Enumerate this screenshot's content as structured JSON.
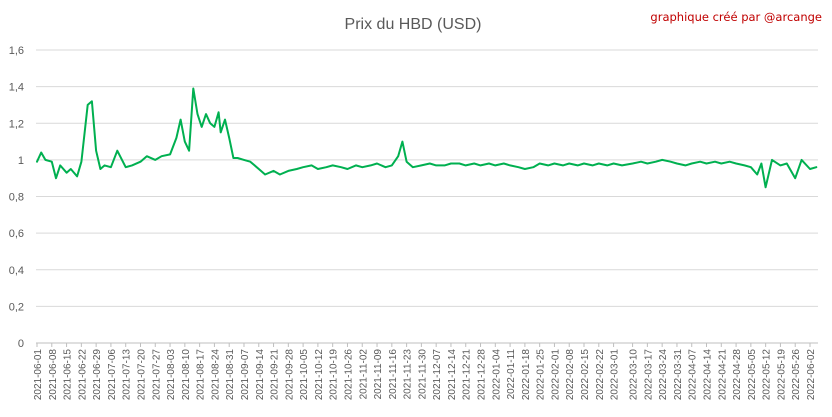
{
  "chart_data": {
    "type": "line",
    "title": "Prix du HBD (USD)",
    "credit": "graphique créé par @arcange",
    "xlabel": "",
    "ylabel": "",
    "ylim": [
      0,
      1.6
    ],
    "yticks": [
      {
        "value": 0,
        "label": "0"
      },
      {
        "value": 0.2,
        "label": "0,2"
      },
      {
        "value": 0.4,
        "label": "0,4"
      },
      {
        "value": 0.6,
        "label": "0,6"
      },
      {
        "value": 0.8,
        "label": "0,8"
      },
      {
        "value": 1,
        "label": "1"
      },
      {
        "value": 1.2,
        "label": "1,2"
      },
      {
        "value": 1.4,
        "label": "1,4"
      },
      {
        "value": 1.6,
        "label": "1,6"
      }
    ],
    "xticks": [
      "2021-06-01",
      "2021-06-08",
      "2021-06-15",
      "2021-06-22",
      "2021-06-29",
      "2021-07-06",
      "2021-07-13",
      "2021-07-20",
      "2021-07-27",
      "2021-08-03",
      "2021-08-10",
      "2021-08-17",
      "2021-08-24",
      "2021-08-31",
      "2021-09-07",
      "2021-09-14",
      "2021-09-21",
      "2021-09-28",
      "2021-10-05",
      "2021-10-12",
      "2021-10-19",
      "2021-10-26",
      "2021-11-02",
      "2021-11-09",
      "2021-11-16",
      "2021-11-23",
      "2021-11-30",
      "2021-12-07",
      "2021-12-14",
      "2021-12-21",
      "2021-12-28",
      "2022-01-04",
      "2022-01-11",
      "2022-01-18",
      "2022-01-25",
      "2022-02-01",
      "2022-02-08",
      "2022-02-15",
      "2022-02-22",
      "2022-03-01",
      "2022-03-10",
      "2022-03-17",
      "2022-03-24",
      "2022-03-31",
      "2022-04-07",
      "2022-04-14",
      "2022-04-21",
      "2022-04-28",
      "2022-05-05",
      "2022-05-12",
      "2022-05-19",
      "2022-05-26",
      "2022-06-02"
    ],
    "grid": true,
    "legend": "none",
    "series_color": "#00b050",
    "series": [
      {
        "x": [
          "2021-06-01",
          "2021-06-03",
          "2021-06-05",
          "2021-06-08",
          "2021-06-10",
          "2021-06-12",
          "2021-06-15",
          "2021-06-17",
          "2021-06-20",
          "2021-06-22",
          "2021-06-25",
          "2021-06-27",
          "2021-06-29",
          "2021-07-01",
          "2021-07-03",
          "2021-07-06",
          "2021-07-09",
          "2021-07-13",
          "2021-07-16",
          "2021-07-20",
          "2021-07-23",
          "2021-07-27",
          "2021-07-30",
          "2021-08-03",
          "2021-08-06",
          "2021-08-08",
          "2021-08-10",
          "2021-08-12",
          "2021-08-14",
          "2021-08-16",
          "2021-08-18",
          "2021-08-20",
          "2021-08-22",
          "2021-08-24",
          "2021-08-26",
          "2021-08-27",
          "2021-08-29",
          "2021-08-31",
          "2021-09-02",
          "2021-09-04",
          "2021-09-07",
          "2021-09-10",
          "2021-09-14",
          "2021-09-17",
          "2021-09-21",
          "2021-09-24",
          "2021-09-28",
          "2021-10-02",
          "2021-10-05",
          "2021-10-09",
          "2021-10-12",
          "2021-10-16",
          "2021-10-19",
          "2021-10-23",
          "2021-10-26",
          "2021-10-30",
          "2021-11-02",
          "2021-11-06",
          "2021-11-09",
          "2021-11-13",
          "2021-11-16",
          "2021-11-19",
          "2021-11-21",
          "2021-11-23",
          "2021-11-26",
          "2021-11-30",
          "2021-12-04",
          "2021-12-07",
          "2021-12-11",
          "2021-12-14",
          "2021-12-18",
          "2021-12-21",
          "2021-12-25",
          "2021-12-28",
          "2022-01-01",
          "2022-01-04",
          "2022-01-08",
          "2022-01-11",
          "2022-01-15",
          "2022-01-18",
          "2022-01-22",
          "2022-01-25",
          "2022-01-29",
          "2022-02-01",
          "2022-02-05",
          "2022-02-08",
          "2022-02-12",
          "2022-02-15",
          "2022-02-19",
          "2022-02-22",
          "2022-02-26",
          "2022-03-01",
          "2022-03-05",
          "2022-03-10",
          "2022-03-14",
          "2022-03-17",
          "2022-03-21",
          "2022-03-24",
          "2022-03-28",
          "2022-03-31",
          "2022-04-04",
          "2022-04-07",
          "2022-04-11",
          "2022-04-14",
          "2022-04-18",
          "2022-04-21",
          "2022-04-25",
          "2022-04-28",
          "2022-05-02",
          "2022-05-05",
          "2022-05-08",
          "2022-05-10",
          "2022-05-12",
          "2022-05-15",
          "2022-05-19",
          "2022-05-22",
          "2022-05-26",
          "2022-05-29",
          "2022-06-02",
          "2022-06-05"
        ],
        "values": [
          0.99,
          1.04,
          1.0,
          0.99,
          0.9,
          0.97,
          0.93,
          0.95,
          0.91,
          0.99,
          1.3,
          1.32,
          1.05,
          0.95,
          0.97,
          0.96,
          1.05,
          0.96,
          0.97,
          0.99,
          1.02,
          1.0,
          1.02,
          1.03,
          1.12,
          1.22,
          1.1,
          1.05,
          1.39,
          1.25,
          1.18,
          1.25,
          1.2,
          1.18,
          1.26,
          1.15,
          1.22,
          1.12,
          1.01,
          1.01,
          1.0,
          0.99,
          0.95,
          0.92,
          0.94,
          0.92,
          0.94,
          0.95,
          0.96,
          0.97,
          0.95,
          0.96,
          0.97,
          0.96,
          0.95,
          0.97,
          0.96,
          0.97,
          0.98,
          0.96,
          0.97,
          1.02,
          1.1,
          0.99,
          0.96,
          0.97,
          0.98,
          0.97,
          0.97,
          0.98,
          0.98,
          0.97,
          0.98,
          0.97,
          0.98,
          0.97,
          0.98,
          0.97,
          0.96,
          0.95,
          0.96,
          0.98,
          0.97,
          0.98,
          0.97,
          0.98,
          0.97,
          0.98,
          0.97,
          0.98,
          0.97,
          0.98,
          0.97,
          0.98,
          0.99,
          0.98,
          0.99,
          1.0,
          0.99,
          0.98,
          0.97,
          0.98,
          0.99,
          0.98,
          0.99,
          0.98,
          0.99,
          0.98,
          0.97,
          0.96,
          0.92,
          0.98,
          0.85,
          1.0,
          0.97,
          0.98,
          0.9,
          1.0,
          0.95,
          0.96
        ]
      }
    ]
  }
}
